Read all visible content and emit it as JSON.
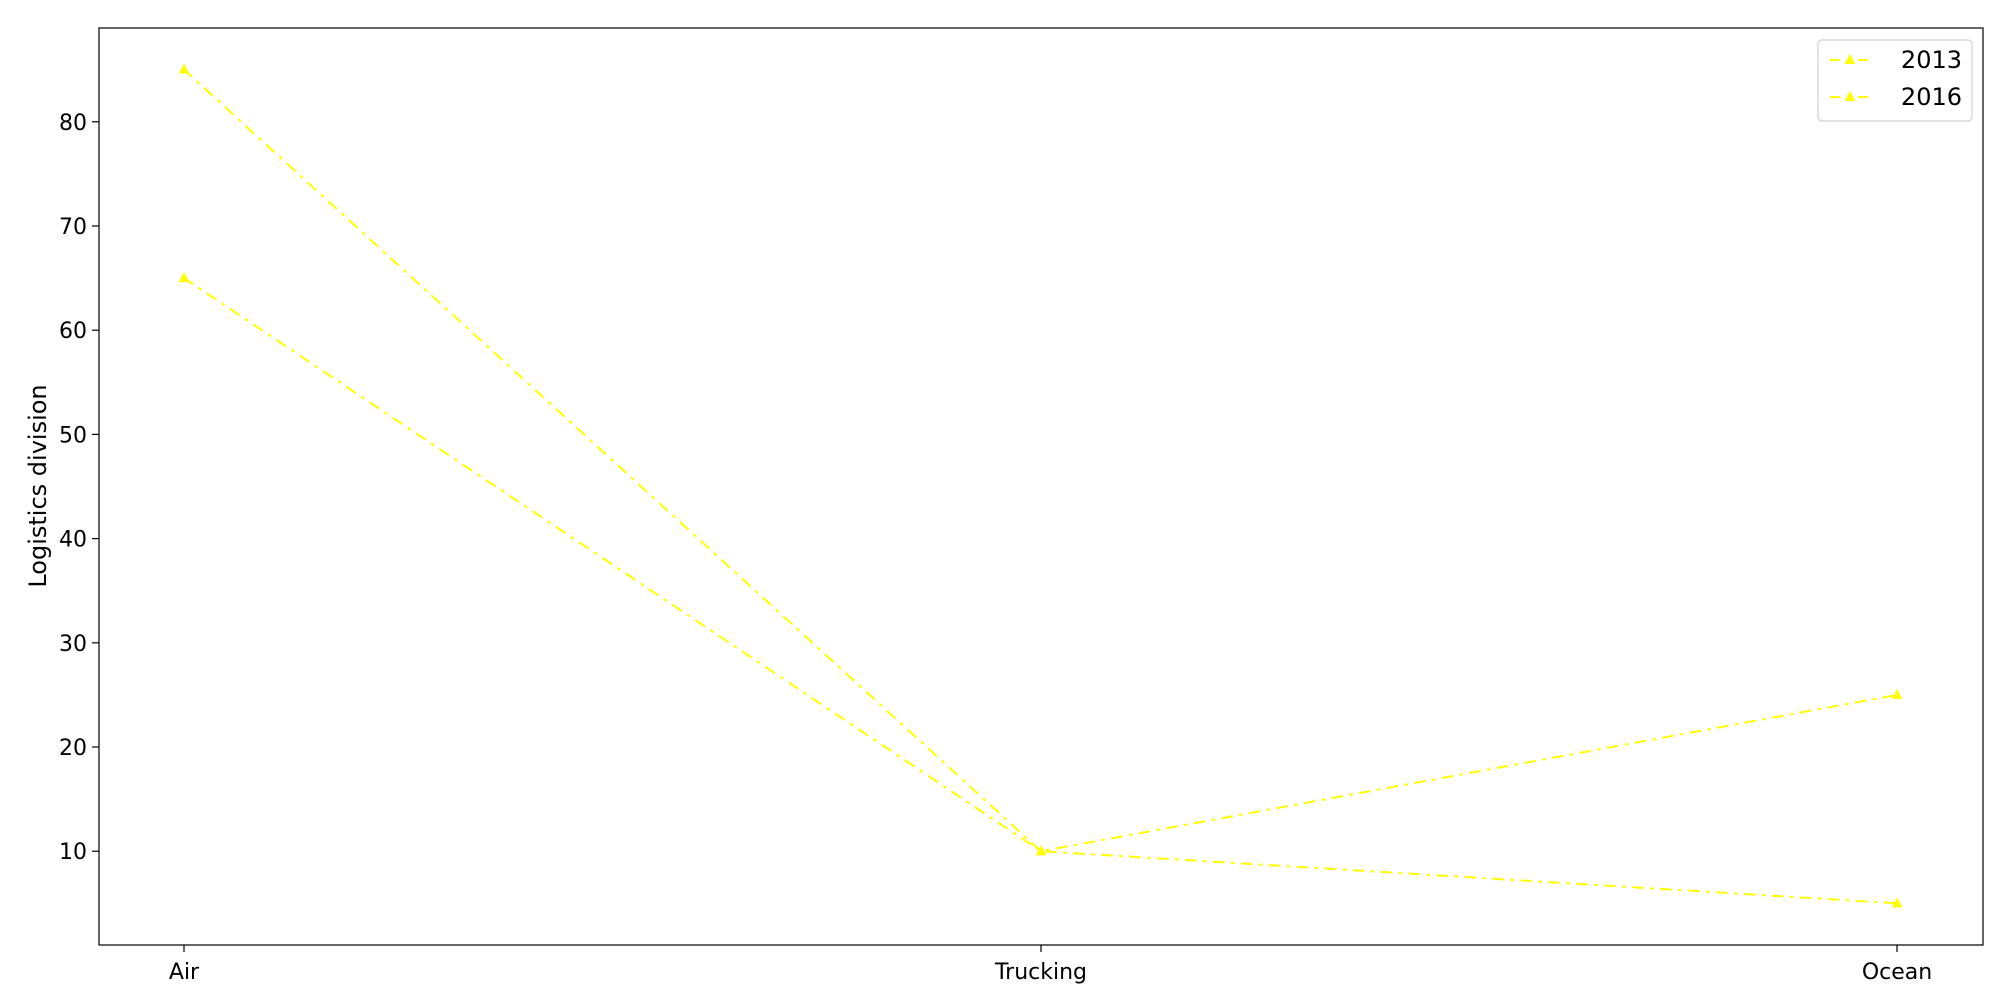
{
  "chart_data": {
    "type": "line",
    "title": "",
    "xlabel": "",
    "ylabel": "Logistics division",
    "categories": [
      "Air",
      "Trucking",
      "Ocean"
    ],
    "series": [
      {
        "name": "2013",
        "values": [
          85,
          10,
          25
        ],
        "color": "#ffff00"
      },
      {
        "name": "2016",
        "values": [
          65,
          10,
          5
        ],
        "color": "#ffff00"
      }
    ],
    "ylim": [
      1,
      89
    ],
    "yticks": [
      10,
      20,
      30,
      40,
      50,
      60,
      70,
      80
    ],
    "grid": false,
    "legend": "top-right",
    "line_style": "dash-dot",
    "marker": "triangle"
  }
}
